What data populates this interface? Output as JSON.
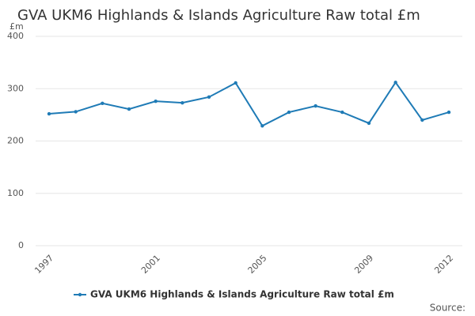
{
  "chart_data": {
    "type": "line",
    "title": "GVA UKM6 Highlands & Islands Agriculture Raw total £m",
    "y_label": "£m",
    "categories": [
      "1997",
      null,
      null,
      null,
      "2001",
      null,
      null,
      null,
      "2005",
      null,
      null,
      null,
      "2009",
      null,
      null,
      "2012"
    ],
    "series": [
      {
        "name": "GVA UKM6 Highlands & Islands Agriculture Raw total £m",
        "color": "#1f7bb6",
        "values": [
          252,
          256,
          272,
          261,
          276,
          273,
          284,
          311,
          229,
          255,
          267,
          255,
          234,
          312,
          240,
          255
        ]
      }
    ],
    "ylim": [
      0,
      400
    ],
    "yticks": [
      0,
      100,
      200,
      300,
      400
    ],
    "grid": true,
    "source": "Source:"
  }
}
